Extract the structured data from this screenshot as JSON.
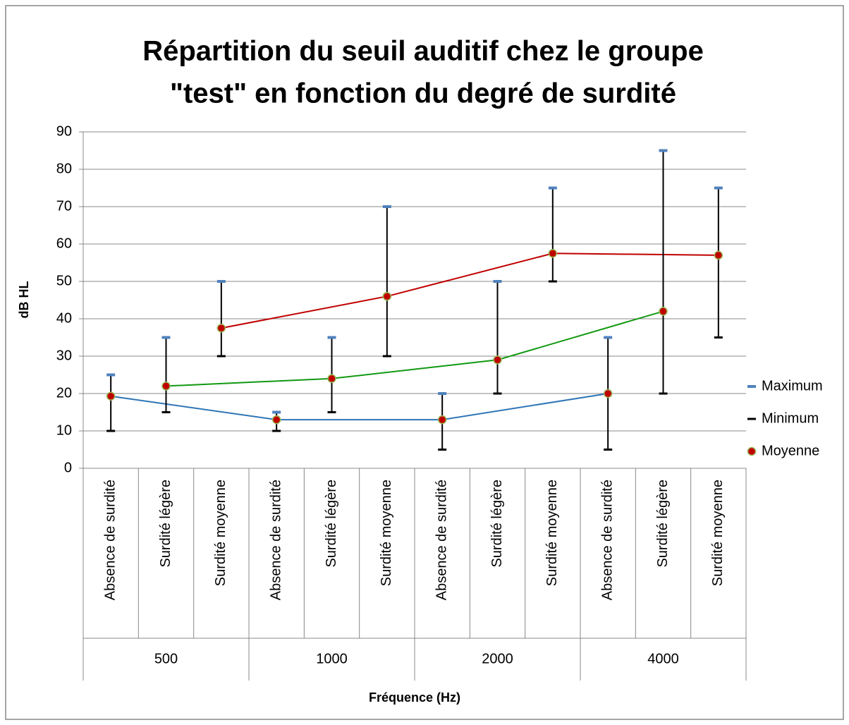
{
  "chart_data": {
    "type": "stock",
    "title": [
      "Répartition du seuil auditif chez le groupe",
      "\"test\" en fonction du degré de surdité"
    ],
    "x_label": "Fréquence (Hz)",
    "y_label": "dB HL",
    "categories": [
      "Absence de surdité",
      "Surdité légère",
      "Surdité moyenne",
      "Absence de surdité",
      "Surdité légère",
      "Surdité moyenne",
      "Absence de surdité",
      "Surdité légère",
      "Surdité moyenne",
      "Absence de surdité",
      "Surdité légère",
      "Surdité moyenne"
    ],
    "groups": [
      "500",
      "1000",
      "2000",
      "4000"
    ],
    "series": [
      {
        "name": "Maximum",
        "color": "#4f81bd",
        "values": [
          25,
          35,
          50,
          15,
          35,
          70,
          20,
          50,
          75,
          35,
          85,
          75
        ]
      },
      {
        "name": "Minimum",
        "color": "#000000",
        "values": [
          10,
          15,
          30,
          10,
          15,
          30,
          5,
          20,
          50,
          5,
          20,
          35
        ]
      },
      {
        "name": "Moyenne",
        "color": "#c00000",
        "values": [
          19.3,
          22,
          37.5,
          13,
          24,
          46,
          13,
          29,
          57.5,
          20,
          42,
          57
        ]
      }
    ],
    "line_colors": [
      "#2e75b6",
      "#119911",
      "#c00000"
    ],
    "ylim": [
      0,
      90
    ],
    "yticks": [
      0,
      10,
      20,
      30,
      40,
      50,
      60,
      70,
      80,
      90
    ],
    "grid": true,
    "legend": "right"
  }
}
